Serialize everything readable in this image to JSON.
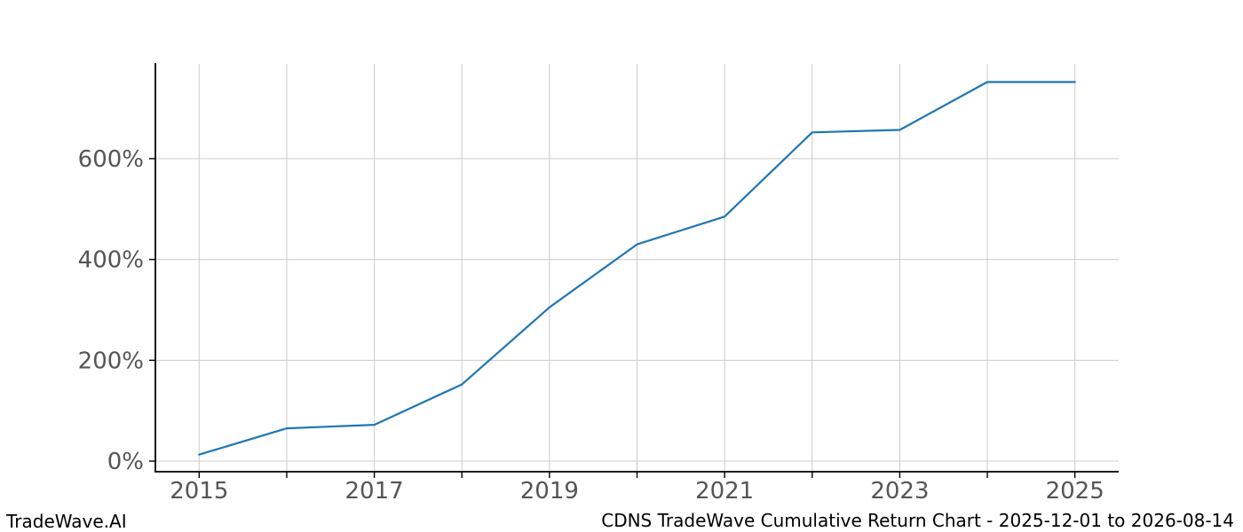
{
  "footer": {
    "brand": "TradeWave.AI",
    "title": "CDNS TradeWave Cumulative Return Chart - 2025-12-01 to 2026-08-14"
  },
  "chart_data": {
    "type": "line",
    "title": "CDNS TradeWave Cumulative Return Chart - 2025-12-01 to 2026-08-14",
    "series": [
      {
        "name": "CDNS cumulative return %",
        "x": [
          2015,
          2016,
          2017,
          2018,
          2019,
          2020,
          2021,
          2022,
          2023,
          2024,
          2025
        ],
        "values": [
          13,
          65,
          72,
          152,
          305,
          430,
          485,
          652,
          657,
          752,
          752
        ]
      }
    ],
    "xlabel": "",
    "ylabel": "",
    "xlim": [
      2014.5,
      2025.5
    ],
    "ylim": [
      -21,
      788
    ],
    "x_grid_years": [
      2015,
      2016,
      2017,
      2018,
      2019,
      2020,
      2021,
      2022,
      2023,
      2024,
      2025
    ],
    "x_tick_labels": [
      "2015",
      "2017",
      "2019",
      "2021",
      "2023",
      "2025"
    ],
    "x_tick_label_years": [
      2015,
      2017,
      2019,
      2021,
      2023,
      2025
    ],
    "y_ticks": [
      0,
      200,
      400,
      600
    ],
    "y_tick_suffix": "%",
    "grid": true,
    "legend": "none",
    "colors": {
      "line": "#1f77b4",
      "grid": "#cccccc",
      "axis": "#000000",
      "tick_label": "#555555",
      "text": "#000000",
      "background": "#ffffff"
    }
  }
}
